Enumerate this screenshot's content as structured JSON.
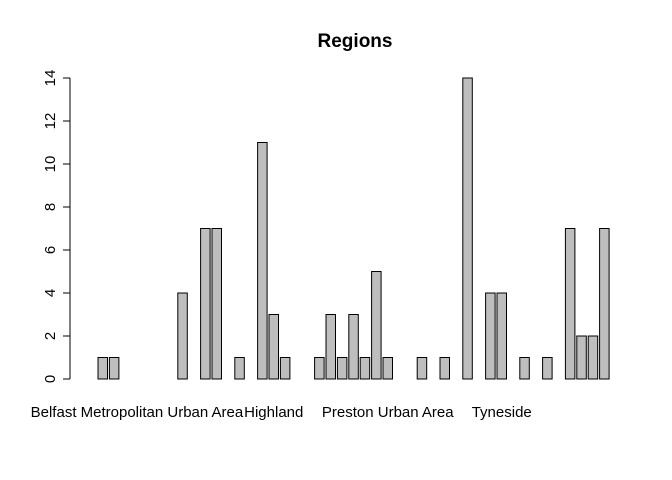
{
  "chart_data": {
    "type": "bar",
    "title": "Regions",
    "xlabel": "",
    "ylabel": "",
    "ylim": [
      0,
      14
    ],
    "yticks": [
      0,
      2,
      4,
      6,
      8,
      10,
      12,
      14
    ],
    "bar_color": "#bebebe",
    "border_color": "#000000",
    "grid": false,
    "visible_category_labels": [
      {
        "text": "Belfast Metropolitan Urban Area",
        "index": 3
      },
      {
        "text": "Highland",
        "index": 15
      },
      {
        "text": "Preston Urban Area",
        "index": 25
      },
      {
        "text": "Tyneside",
        "index": 35
      }
    ],
    "values": [
      1,
      1,
      0,
      0,
      0,
      0,
      0,
      4,
      0,
      7,
      7,
      0,
      1,
      0,
      11,
      3,
      1,
      0,
      0,
      1,
      3,
      1,
      3,
      1,
      5,
      1,
      0,
      0,
      1,
      0,
      1,
      0,
      14,
      0,
      4,
      4,
      0,
      1,
      0,
      1,
      0,
      7,
      2,
      2,
      7
    ]
  }
}
